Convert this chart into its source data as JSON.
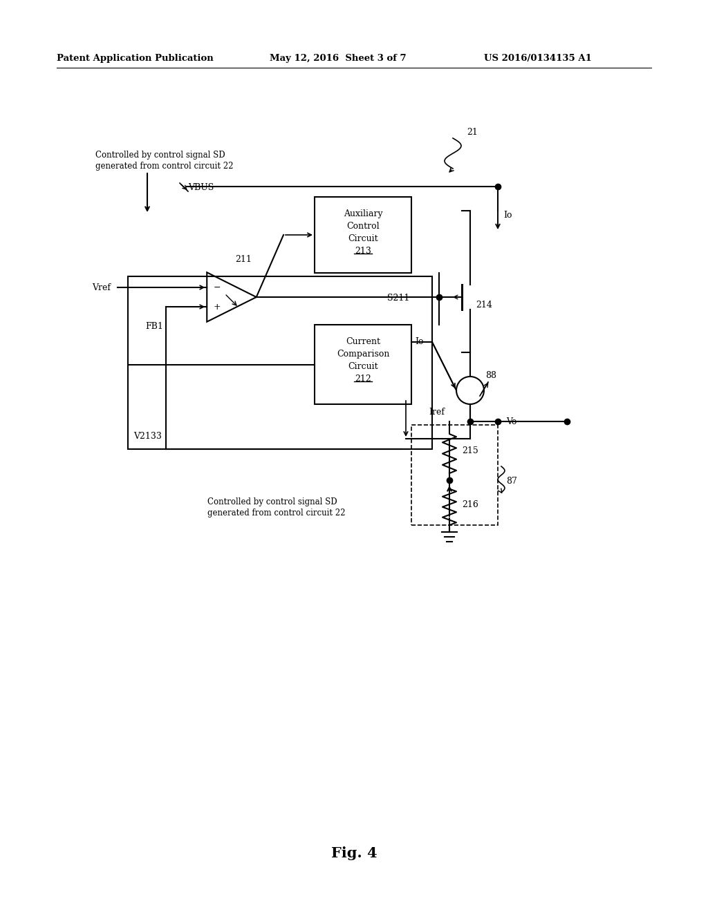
{
  "bg_color": "#ffffff",
  "header_left": "Patent Application Publication",
  "header_mid": "May 12, 2016  Sheet 3 of 7",
  "header_right": "US 2016/0134135 A1",
  "fig_label": "Fig. 4"
}
